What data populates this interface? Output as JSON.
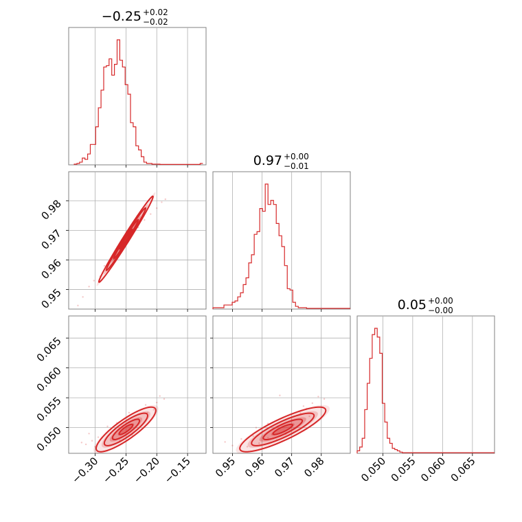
{
  "chart_data": {
    "type": "corner",
    "accent_color": "#d62728",
    "params": [
      {
        "title": {
          "median": "0.25",
          "median_sign": "−",
          "upper": "+0.02",
          "lower": "−0.02"
        },
        "range": [
          -0.343,
          -0.12
        ],
        "ticks": [
          -0.3,
          -0.25,
          -0.2,
          -0.15
        ],
        "tick_labels": [
          "−0.30",
          "−0.25",
          "−0.20",
          "−0.15"
        ]
      },
      {
        "title": {
          "median": "0.97",
          "median_sign": "",
          "upper": "+0.00",
          "lower": "−0.01"
        },
        "range": [
          0.9434,
          0.9898
        ],
        "ticks": [
          0.95,
          0.96,
          0.97,
          0.98
        ],
        "tick_labels": [
          "0.95",
          "0.96",
          "0.97",
          "0.98"
        ]
      },
      {
        "title": {
          "median": "0.05",
          "median_sign": "",
          "upper": "+0.00",
          "lower": "−0.00"
        },
        "range": [
          0.0457,
          0.0687
        ],
        "ticks": [
          0.05,
          0.055,
          0.06,
          0.065
        ],
        "tick_labels": [
          "0.050",
          "0.055",
          "0.060",
          "0.065"
        ]
      }
    ],
    "histograms": [
      {
        "bin_start": -0.334,
        "bin_width": 0.00435,
        "counts": [
          0.005,
          0.01,
          0.02,
          0.05,
          0.04,
          0.08,
          0.15,
          0.15,
          0.28,
          0.42,
          0.55,
          0.72,
          0.73,
          0.78,
          0.66,
          0.74,
          0.92,
          0.77,
          0.72,
          0.59,
          0.52,
          0.31,
          0.28,
          0.14,
          0.11,
          0.06,
          0.02,
          0.01,
          0.01,
          0.005,
          0.005,
          0.005,
          0.003,
          0.003,
          0.003,
          0.003,
          0.003,
          0.003,
          0.003,
          0.003,
          0.003,
          0.003,
          0.003,
          0.003,
          0.003,
          0.003,
          0.003,
          0.01
        ],
        "ymax": 0.92
      },
      {
        "bin_start": 0.9434,
        "bin_width": 0.00093,
        "counts": [
          0.01,
          0.01,
          0.01,
          0.01,
          0.03,
          0.03,
          0.03,
          0.05,
          0.06,
          0.09,
          0.12,
          0.18,
          0.23,
          0.34,
          0.4,
          0.55,
          0.57,
          0.74,
          0.72,
          0.92,
          0.77,
          0.8,
          0.77,
          0.63,
          0.54,
          0.46,
          0.32,
          0.15,
          0.14,
          0.05,
          0.02,
          0.01,
          0.01,
          0.01,
          0.005,
          0.005,
          0.005,
          0.005,
          0.005,
          0.005,
          0.005,
          0.005,
          0.005,
          0.005,
          0.005,
          0.005,
          0.005,
          0.005,
          0.005,
          0.005
        ],
        "ymax": 0.92
      },
      {
        "bin_start": 0.0457,
        "bin_width": 0.00042,
        "counts": [
          0.02,
          0.05,
          0.12,
          0.35,
          0.56,
          0.76,
          0.95,
          1.0,
          0.93,
          0.8,
          0.4,
          0.25,
          0.12,
          0.08,
          0.04,
          0.03,
          0.02,
          0.01,
          0.005,
          0.005,
          0.005,
          0.005,
          0.005,
          0.005,
          0.005,
          0.005,
          0.005,
          0.005,
          0.005,
          0.005,
          0.005,
          0.005,
          0.005,
          0.005,
          0.005,
          0.005,
          0.005,
          0.005,
          0.005,
          0.005,
          0.005,
          0.005,
          0.005,
          0.005,
          0.005,
          0.005,
          0.005,
          0.005,
          0.005,
          0.005,
          0.005,
          0.005,
          0.005,
          0.005,
          0.005
        ],
        "ymax": 1.0
      }
    ],
    "correlations": [
      {
        "x": 0,
        "y": 1,
        "mean": [
          -0.25,
          0.967
        ],
        "sigma": [
          0.02,
          0.0066
        ],
        "rho": 0.99,
        "scatter_points": [
          [
            -0.328,
            0.9446
          ],
          [
            -0.32,
            0.9475
          ],
          [
            -0.31,
            0.951
          ],
          [
            -0.302,
            0.953
          ],
          [
            -0.292,
            0.9545
          ],
          [
            -0.285,
            0.958
          ],
          [
            -0.278,
            0.959
          ],
          [
            -0.27,
            0.962
          ],
          [
            -0.26,
            0.964
          ],
          [
            -0.25,
            0.967
          ],
          [
            -0.24,
            0.969
          ],
          [
            -0.23,
            0.971
          ],
          [
            -0.22,
            0.9735
          ],
          [
            -0.21,
            0.9755
          ],
          [
            -0.2,
            0.9775
          ],
          [
            -0.192,
            0.9795
          ],
          [
            -0.186,
            0.9805
          ]
        ]
      },
      {
        "x": 0,
        "y": 2,
        "mean": [
          -0.25,
          0.0497
        ],
        "sigma": [
          0.022,
          0.0017
        ],
        "rho": 0.85,
        "scatter_points": [
          [
            -0.322,
            0.0475
          ],
          [
            -0.315,
            0.0472
          ],
          [
            -0.305,
            0.0478
          ],
          [
            -0.3,
            0.0468
          ],
          [
            -0.295,
            0.0484
          ],
          [
            -0.285,
            0.0473
          ],
          [
            -0.27,
            0.0482
          ],
          [
            -0.26,
            0.0479
          ],
          [
            -0.24,
            0.0488
          ],
          [
            -0.23,
            0.0515
          ],
          [
            -0.215,
            0.0525
          ],
          [
            -0.205,
            0.053
          ],
          [
            -0.2,
            0.0542
          ],
          [
            -0.195,
            0.0553
          ],
          [
            -0.188,
            0.0548
          ],
          [
            -0.31,
            0.049
          ],
          [
            -0.28,
            0.0502
          ],
          [
            -0.265,
            0.0508
          ],
          [
            -0.218,
            0.0538
          ],
          [
            -0.245,
            0.0525
          ]
        ]
      },
      {
        "x": 1,
        "y": 2,
        "mean": [
          0.967,
          0.0497
        ],
        "sigma": [
          0.0066,
          0.0017
        ],
        "rho": 0.85,
        "scatter_points": [
          [
            0.9475,
            0.0476
          ],
          [
            0.95,
            0.047
          ],
          [
            0.953,
            0.0481
          ],
          [
            0.955,
            0.0468
          ],
          [
            0.957,
            0.0486
          ],
          [
            0.959,
            0.0474
          ],
          [
            0.962,
            0.0483
          ],
          [
            0.965,
            0.0479
          ],
          [
            0.968,
            0.0489
          ],
          [
            0.97,
            0.0513
          ],
          [
            0.973,
            0.0524
          ],
          [
            0.975,
            0.0532
          ],
          [
            0.977,
            0.0541
          ],
          [
            0.979,
            0.0552
          ],
          [
            0.981,
            0.0548
          ],
          [
            0.966,
            0.0554
          ],
          [
            0.958,
            0.05
          ],
          [
            0.962,
            0.0507
          ],
          [
            0.974,
            0.0536
          ],
          [
            0.976,
            0.0519
          ]
        ]
      }
    ]
  }
}
